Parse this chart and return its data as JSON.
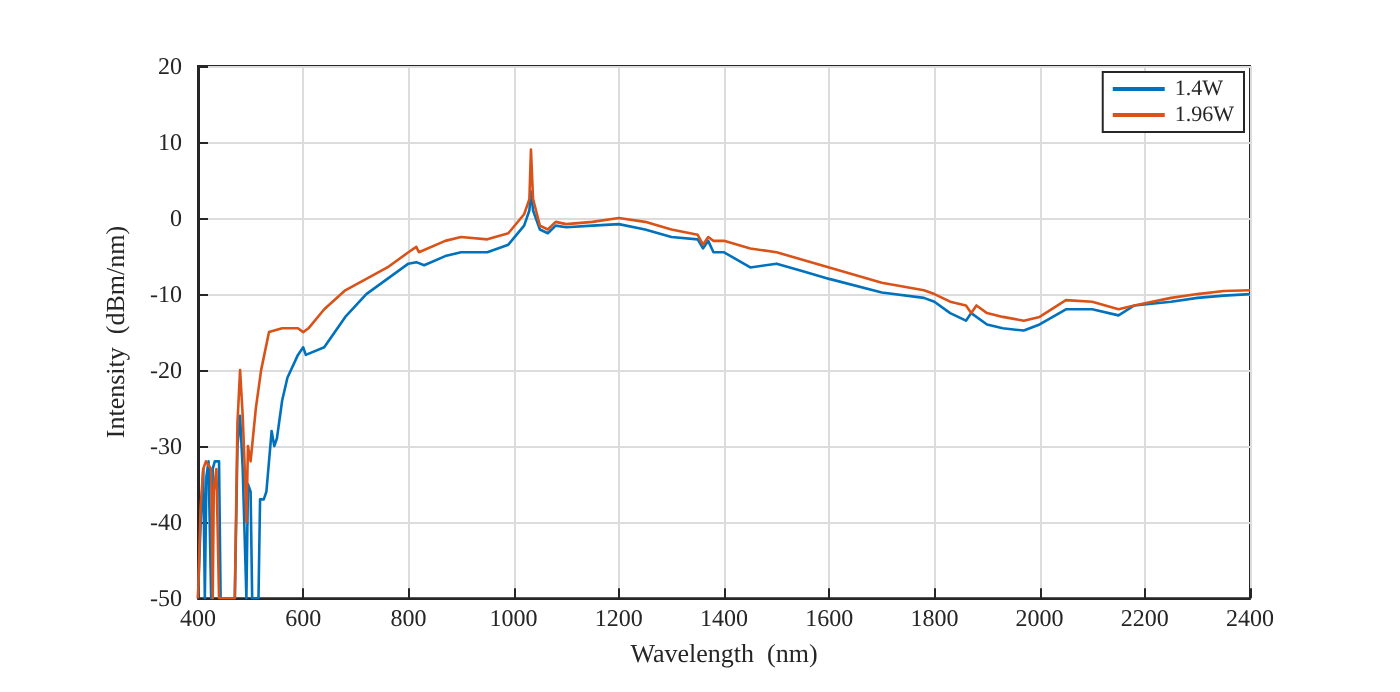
{
  "chart_data": {
    "type": "line",
    "xlabel": "Wavelength  (nm)",
    "ylabel": "Intensity  (dBm/nm)",
    "xlim": [
      400,
      2400
    ],
    "xticks": [
      400,
      600,
      800,
      1000,
      1200,
      1400,
      1600,
      1800,
      2000,
      2200,
      2400
    ],
    "ylim": [
      -50,
      20
    ],
    "yticks": [
      -50,
      -40,
      -30,
      -20,
      -10,
      0,
      10,
      20
    ],
    "grid": true,
    "legend": "top right",
    "marker": "none",
    "line_style": "solid",
    "series": [
      {
        "name": "1.4W",
        "color": "#0072bd",
        "x": [
          400,
          405,
          410,
          413,
          416,
          420,
          425,
          428,
          432,
          440,
          443,
          470,
          475,
          480,
          485,
          490,
          492,
          495,
          500,
          503,
          515,
          518,
          525,
          530,
          540,
          545,
          550,
          560,
          570,
          590,
          600,
          605,
          640,
          680,
          720,
          760,
          800,
          815,
          830,
          870,
          900,
          950,
          990,
          1020,
          1030,
          1033,
          1037,
          1050,
          1065,
          1080,
          1100,
          1150,
          1200,
          1250,
          1300,
          1350,
          1360,
          1370,
          1380,
          1400,
          1450,
          1500,
          1550,
          1600,
          1700,
          1780,
          1800,
          1830,
          1860,
          1870,
          1900,
          1930,
          1970,
          2000,
          2050,
          2100,
          2150,
          2180,
          2250,
          2300,
          2350,
          2400
        ],
        "values": [
          -50,
          -40,
          -33,
          -50,
          -34,
          -32,
          -50,
          -33,
          -32,
          -32,
          -50,
          -50,
          -30,
          -26,
          -33,
          -45,
          -50,
          -35,
          -36,
          -50,
          -50,
          -37,
          -37,
          -36,
          -28,
          -30,
          -29,
          -24,
          -21,
          -18,
          -17,
          -18,
          -17,
          -13,
          -10,
          -8,
          -6,
          -5.8,
          -6.2,
          -5,
          -4.5,
          -4.5,
          -3.5,
          -1,
          1,
          3.5,
          1,
          -1.5,
          -2,
          -1,
          -1.2,
          -1,
          -0.8,
          -1.5,
          -2.5,
          -2.8,
          -4,
          -3,
          -4.5,
          -4.5,
          -6.5,
          -6,
          -7,
          -8,
          -9.8,
          -10.5,
          -11,
          -12.5,
          -13.5,
          -12.5,
          -14,
          -14.5,
          -14.8,
          -14,
          -12,
          -12,
          -12.8,
          -11.5,
          -11,
          -10.5,
          -10.2,
          -10
        ]
      },
      {
        "name": "1.96W",
        "color": "#d95319",
        "x": [
          400,
          405,
          410,
          415,
          420,
          425,
          428,
          430,
          435,
          440,
          470,
          475,
          480,
          485,
          490,
          492,
          495,
          500,
          510,
          520,
          535,
          560,
          590,
          600,
          610,
          640,
          680,
          720,
          760,
          800,
          815,
          820,
          870,
          900,
          950,
          990,
          1020,
          1030,
          1033,
          1037,
          1050,
          1065,
          1080,
          1100,
          1150,
          1200,
          1250,
          1300,
          1350,
          1360,
          1370,
          1380,
          1400,
          1450,
          1500,
          1600,
          1700,
          1780,
          1800,
          1830,
          1860,
          1870,
          1880,
          1900,
          1930,
          1970,
          2000,
          2050,
          2100,
          2150,
          2180,
          2250,
          2300,
          2350,
          2400
        ],
        "values": [
          -50,
          -38,
          -33,
          -32,
          -32.5,
          -33,
          -50,
          -36,
          -33,
          -50,
          -50,
          -27,
          -20,
          -26,
          -35,
          -40,
          -30,
          -32,
          -25,
          -20,
          -15,
          -14.5,
          -14.5,
          -15,
          -14.5,
          -12,
          -9.5,
          -8,
          -6.5,
          -4.5,
          -3.8,
          -4.5,
          -3,
          -2.5,
          -2.8,
          -2,
          0.5,
          2.5,
          9,
          2.5,
          -1,
          -1.5,
          -0.5,
          -0.8,
          -0.5,
          0,
          -0.5,
          -1.5,
          -2.2,
          -3.5,
          -2.5,
          -3,
          -3,
          -4,
          -4.5,
          -6.5,
          -8.5,
          -9.5,
          -10,
          -11,
          -11.5,
          -12.5,
          -11.5,
          -12.5,
          -13,
          -13.5,
          -13,
          -10.8,
          -11,
          -12,
          -11.5,
          -10.5,
          -10,
          -9.6,
          -9.5
        ]
      }
    ]
  }
}
